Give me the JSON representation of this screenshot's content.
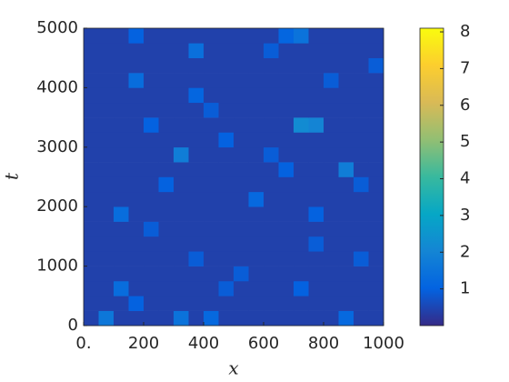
{
  "chart_data": {
    "type": "heatmap",
    "x_label": "x",
    "y_label": "t",
    "xlim": [
      0,
      1000
    ],
    "ylim": [
      0,
      5000
    ],
    "xticks": [
      {
        "value": 0,
        "label": "0."
      },
      200,
      400,
      600,
      800,
      1000
    ],
    "yticks": [
      0,
      1000,
      2000,
      3000,
      4000,
      5000
    ],
    "clim": [
      0,
      8.1
    ],
    "cticks": [
      1,
      2,
      3,
      4,
      5,
      6,
      7,
      8
    ],
    "colormap": [
      "#352a87",
      "#0363e1",
      "#1485d4",
      "#06a7c6",
      "#38b99e",
      "#92bf73",
      "#d9ba56",
      "#fcce2e",
      "#f9fb0e"
    ],
    "z": [
      [
        0.4,
        1.6,
        0.4,
        0.4,
        0.4,
        0.4,
        1.5,
        0.4,
        1.2,
        0.4,
        0.4,
        0.4,
        0.4,
        0.4,
        0.4,
        0.4,
        0.4,
        1.2,
        0.4,
        0.4
      ],
      [
        0.4,
        0.4,
        0.4,
        1.0,
        0.4,
        0.4,
        0.4,
        0.4,
        0.4,
        0.4,
        0.4,
        0.4,
        0.4,
        0.4,
        0.4,
        0.4,
        0.4,
        0.4,
        0.4,
        0.4
      ],
      [
        0.4,
        0.4,
        1.3,
        0.4,
        0.4,
        0.4,
        0.4,
        0.4,
        0.4,
        0.9,
        0.4,
        0.4,
        0.4,
        0.4,
        1.0,
        0.4,
        0.4,
        0.4,
        0.4,
        0.4
      ],
      [
        0.4,
        0.4,
        0.4,
        0.4,
        0.4,
        0.4,
        0.4,
        0.4,
        0.4,
        0.4,
        0.9,
        0.4,
        0.4,
        0.4,
        0.4,
        0.4,
        0.4,
        0.4,
        0.4,
        0.4
      ],
      [
        0.4,
        0.4,
        0.4,
        0.4,
        0.4,
        0.4,
        0.4,
        0.9,
        0.4,
        0.4,
        0.4,
        0.4,
        0.4,
        0.4,
        0.4,
        0.4,
        0.4,
        0.4,
        0.9,
        0.4
      ],
      [
        0.4,
        0.4,
        0.4,
        0.4,
        0.4,
        0.4,
        0.4,
        0.4,
        0.4,
        0.4,
        0.4,
        0.4,
        0.4,
        0.4,
        0.4,
        0.9,
        0.4,
        0.4,
        0.4,
        0.4
      ],
      [
        0.4,
        0.4,
        0.4,
        0.4,
        0.9,
        0.4,
        0.4,
        0.4,
        0.4,
        0.4,
        0.4,
        0.4,
        0.4,
        0.4,
        0.4,
        0.4,
        0.4,
        0.4,
        0.4,
        0.4
      ],
      [
        0.4,
        0.4,
        1.3,
        0.4,
        0.4,
        0.4,
        0.4,
        0.4,
        0.4,
        0.4,
        0.4,
        0.4,
        0.4,
        0.4,
        0.4,
        1.0,
        0.4,
        0.4,
        0.4,
        0.4
      ],
      [
        0.4,
        0.4,
        0.4,
        0.4,
        0.4,
        0.4,
        0.4,
        0.4,
        0.4,
        0.4,
        0.4,
        1.2,
        0.4,
        0.4,
        0.4,
        0.4,
        0.4,
        0.4,
        0.4,
        0.4
      ],
      [
        0.4,
        0.4,
        0.4,
        0.4,
        0.4,
        1.0,
        0.4,
        0.4,
        0.4,
        0.4,
        0.4,
        0.4,
        0.4,
        0.4,
        0.4,
        0.4,
        0.4,
        0.4,
        0.9,
        0.4
      ],
      [
        0.4,
        0.4,
        0.4,
        0.4,
        0.4,
        0.4,
        0.4,
        0.4,
        0.4,
        0.4,
        0.4,
        0.4,
        0.4,
        1.0,
        0.4,
        0.4,
        0.4,
        1.8,
        0.4,
        0.4
      ],
      [
        0.4,
        0.4,
        0.4,
        0.4,
        0.4,
        0.4,
        1.8,
        0.4,
        0.4,
        0.4,
        0.4,
        0.4,
        0.9,
        0.4,
        0.4,
        0.4,
        0.4,
        0.4,
        0.4,
        0.4
      ],
      [
        0.4,
        0.4,
        0.4,
        0.4,
        0.4,
        0.4,
        0.4,
        0.4,
        0.4,
        1.0,
        0.4,
        0.4,
        0.4,
        0.4,
        0.4,
        0.4,
        0.4,
        0.4,
        0.4,
        0.4
      ],
      [
        0.4,
        0.4,
        0.4,
        0.4,
        1.0,
        0.4,
        0.4,
        0.4,
        0.4,
        0.4,
        0.4,
        0.4,
        0.4,
        0.4,
        2.2,
        2.0,
        0.4,
        0.4,
        0.4,
        0.4
      ],
      [
        0.4,
        0.4,
        0.4,
        0.4,
        0.4,
        0.4,
        0.4,
        0.4,
        0.9,
        0.4,
        0.4,
        0.4,
        0.4,
        0.4,
        0.4,
        0.4,
        0.4,
        0.4,
        0.4,
        0.4
      ],
      [
        0.4,
        0.4,
        0.4,
        0.4,
        0.4,
        0.4,
        0.4,
        1.1,
        0.4,
        0.4,
        0.4,
        0.4,
        0.4,
        0.4,
        0.4,
        0.4,
        0.4,
        0.4,
        0.4,
        0.4
      ],
      [
        0.4,
        0.4,
        0.4,
        1.3,
        0.4,
        0.4,
        0.4,
        0.4,
        0.4,
        0.4,
        0.4,
        0.4,
        0.4,
        0.4,
        0.4,
        0.4,
        0.9,
        0.4,
        0.4,
        0.4
      ],
      [
        0.4,
        0.4,
        0.4,
        0.4,
        0.4,
        0.4,
        0.4,
        0.4,
        0.4,
        0.4,
        0.4,
        0.4,
        0.4,
        0.4,
        0.4,
        0.4,
        0.4,
        0.4,
        0.4,
        0.9
      ],
      [
        0.4,
        0.4,
        0.4,
        0.4,
        0.4,
        0.4,
        0.4,
        1.4,
        0.4,
        0.4,
        0.4,
        0.4,
        0.9,
        0.4,
        0.4,
        0.4,
        0.4,
        0.4,
        0.4,
        0.4
      ],
      [
        0.4,
        0.4,
        0.4,
        1.0,
        0.4,
        0.4,
        0.4,
        0.4,
        0.4,
        0.4,
        0.4,
        0.4,
        0.4,
        1.1,
        1.5,
        0.4,
        0.4,
        0.4,
        0.4,
        0.4
      ]
    ]
  }
}
